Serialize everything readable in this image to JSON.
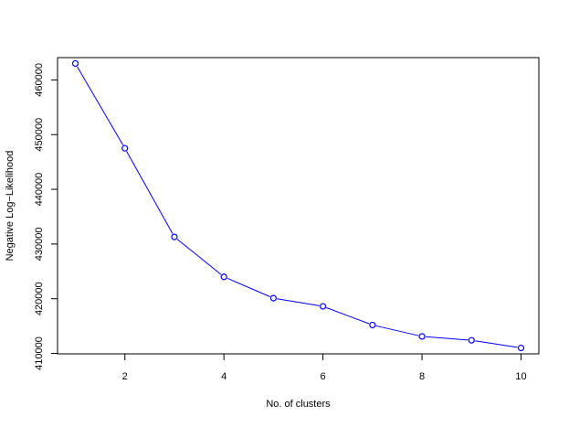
{
  "chart_data": {
    "type": "line",
    "title": "",
    "xlabel": "No. of clusters",
    "ylabel": "Negative Log−Likelihood",
    "x": [
      1,
      2,
      3,
      4,
      5,
      6,
      7,
      8,
      9,
      10
    ],
    "series": [
      {
        "values": [
          463000,
          447500,
          431300,
          424000,
          420100,
          418600,
          415200,
          413100,
          412400,
          411000
        ],
        "color": "#0000ff",
        "marker": "open-circle"
      }
    ],
    "xlim": [
      0.64,
      10.36
    ],
    "ylim": [
      409920,
      464080
    ],
    "xticks": [
      2,
      4,
      6,
      8,
      10
    ],
    "yticks": [
      410000,
      420000,
      430000,
      440000,
      450000,
      460000
    ],
    "xtick_labels": [
      "2",
      "4",
      "6",
      "8",
      "10"
    ],
    "ytick_labels": [
      "410000",
      "420000",
      "430000",
      "440000",
      "450000",
      "460000"
    ],
    "grid": false,
    "legend": "none"
  }
}
